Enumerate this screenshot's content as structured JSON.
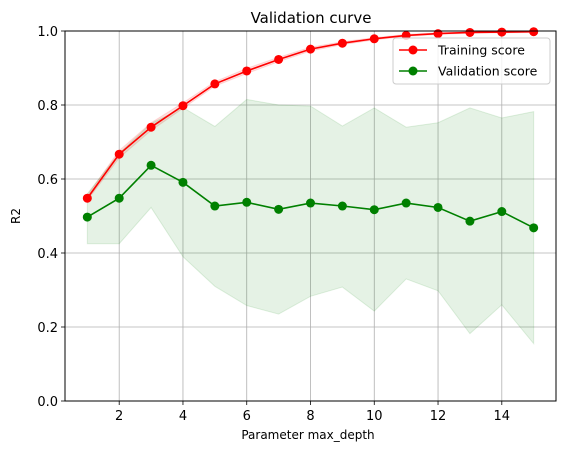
{
  "chart_data": {
    "type": "line",
    "title": "Validation curve",
    "xlabel": "Parameter max_depth",
    "ylabel": "R2",
    "xlim": [
      0.3,
      15.7
    ],
    "ylim": [
      0.0,
      1.0
    ],
    "grid": true,
    "legend_position": "top-right",
    "x_ticks": [
      2,
      4,
      6,
      8,
      10,
      12,
      14
    ],
    "y_ticks": [
      0.0,
      0.2,
      0.4,
      0.6,
      0.8,
      1.0
    ],
    "x_tick_labels": [
      "2",
      "4",
      "6",
      "8",
      "10",
      "12",
      "14"
    ],
    "y_tick_labels": [
      "0.0",
      "0.2",
      "0.4",
      "0.6",
      "0.8",
      "1.0"
    ],
    "x": [
      1,
      2,
      3,
      4,
      5,
      6,
      7,
      8,
      9,
      10,
      11,
      12,
      13,
      14,
      15
    ],
    "series": [
      {
        "name": "Training score",
        "color": "#ff0000",
        "band_color": "#ff0000",
        "values": [
          0.548,
          0.667,
          0.74,
          0.798,
          0.857,
          0.892,
          0.923,
          0.951,
          0.967,
          0.979,
          0.988,
          0.993,
          0.996,
          0.997,
          0.998
        ],
        "band_lower": [
          0.542,
          0.657,
          0.731,
          0.791,
          0.851,
          0.885,
          0.917,
          0.946,
          0.963,
          0.976,
          0.985,
          0.991,
          0.994,
          0.995,
          0.996
        ],
        "band_upper": [
          0.556,
          0.677,
          0.752,
          0.806,
          0.863,
          0.899,
          0.929,
          0.956,
          0.971,
          0.982,
          0.991,
          0.995,
          0.998,
          0.999,
          1.0
        ]
      },
      {
        "name": "Validation score",
        "color": "#008000",
        "band_color": "#008000",
        "values": [
          0.497,
          0.548,
          0.637,
          0.591,
          0.527,
          0.537,
          0.518,
          0.535,
          0.527,
          0.517,
          0.535,
          0.523,
          0.486,
          0.512,
          0.468
        ],
        "band_lower": [
          0.425,
          0.425,
          0.523,
          0.39,
          0.31,
          0.258,
          0.235,
          0.283,
          0.308,
          0.243,
          0.33,
          0.298,
          0.182,
          0.26,
          0.155
        ],
        "band_upper": [
          0.56,
          0.67,
          0.75,
          0.793,
          0.742,
          0.815,
          0.8,
          0.797,
          0.743,
          0.792,
          0.74,
          0.752,
          0.792,
          0.765,
          0.782
        ]
      }
    ]
  }
}
